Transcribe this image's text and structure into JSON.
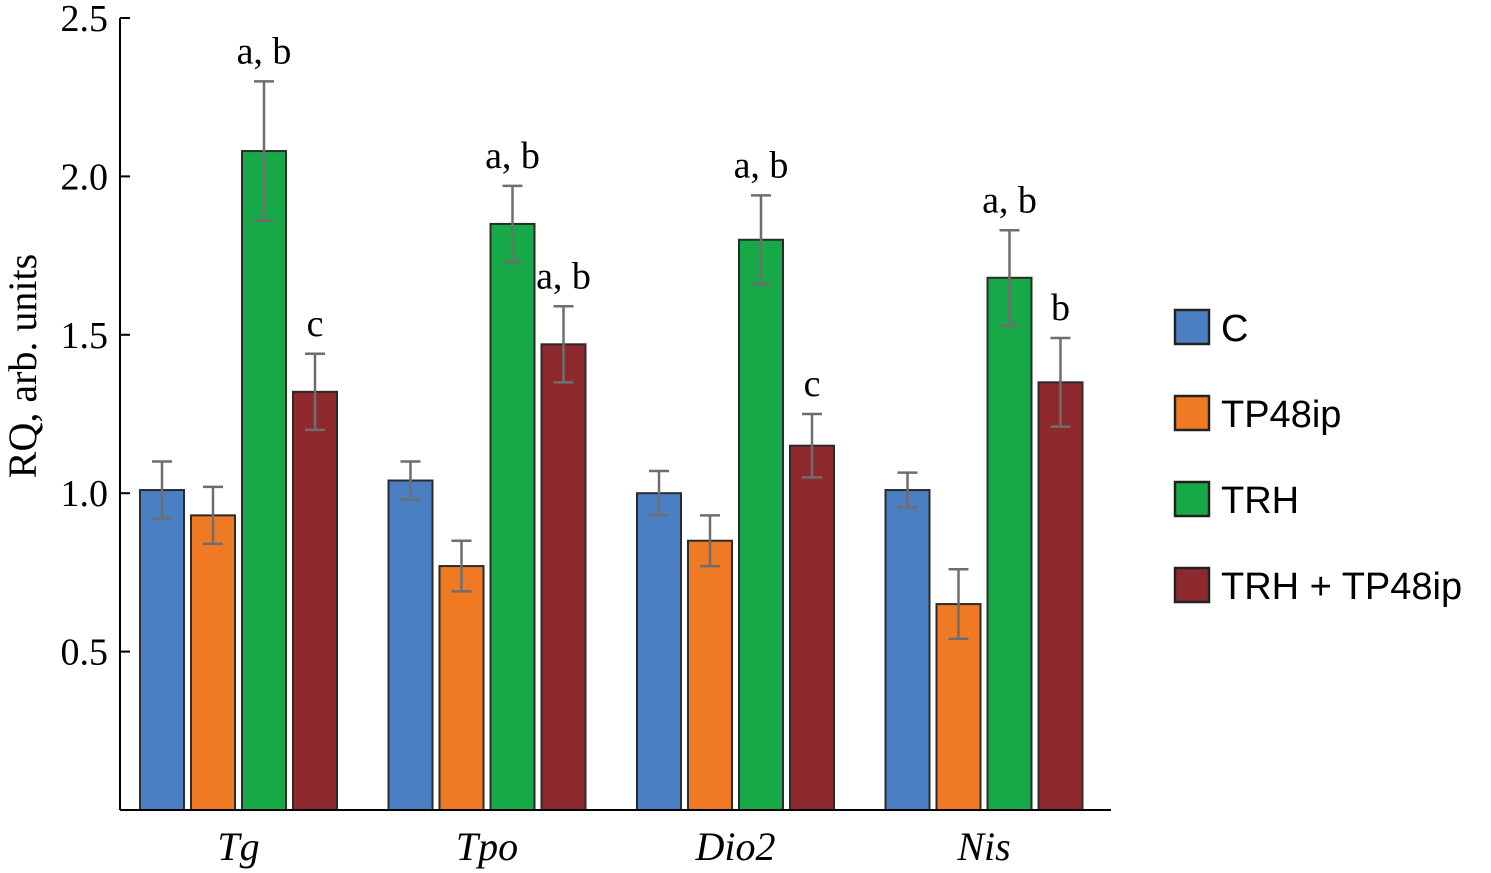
{
  "chart_data": {
    "type": "bar",
    "ylabel": "RQ, arb. units",
    "xlabel": "",
    "ylim": [
      0,
      2.5
    ],
    "yticks": [
      "0.5",
      "1.0",
      "1.5",
      "2.0",
      "2.5"
    ],
    "grid": false,
    "legend_position": "right",
    "categories": [
      "Tg",
      "Tpo",
      "Dio2",
      "Nis"
    ],
    "series": [
      {
        "name": "C",
        "color": "#4a7fc4",
        "values": [
          1.01,
          1.04,
          1.0,
          1.01
        ],
        "errors": [
          0.09,
          0.06,
          0.07,
          0.055
        ]
      },
      {
        "name": "TP48ip",
        "color": "#f07a24",
        "values": [
          0.93,
          0.77,
          0.85,
          0.65
        ],
        "errors": [
          0.09,
          0.08,
          0.08,
          0.11
        ]
      },
      {
        "name": "TRH",
        "color": "#17a848",
        "values": [
          2.08,
          1.85,
          1.8,
          1.68
        ],
        "errors": [
          0.22,
          0.12,
          0.14,
          0.15
        ]
      },
      {
        "name": "TRH + TP48ip",
        "color": "#8e2a2e",
        "values": [
          1.32,
          1.47,
          1.15,
          1.35
        ],
        "errors": [
          0.12,
          0.12,
          0.1,
          0.14
        ]
      }
    ],
    "annotations": [
      {
        "category": 0,
        "series": 2,
        "text": "a, b"
      },
      {
        "category": 0,
        "series": 3,
        "text": "c"
      },
      {
        "category": 1,
        "series": 2,
        "text": "a, b"
      },
      {
        "category": 1,
        "series": 3,
        "text": "a, b"
      },
      {
        "category": 2,
        "series": 2,
        "text": "a, b"
      },
      {
        "category": 2,
        "series": 3,
        "text": "c"
      },
      {
        "category": 3,
        "series": 2,
        "text": "a, b"
      },
      {
        "category": 3,
        "series": 3,
        "text": "b"
      }
    ]
  }
}
